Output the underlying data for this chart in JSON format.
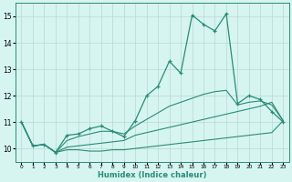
{
  "xlabel": "Humidex (Indice chaleur)",
  "x": [
    0,
    1,
    2,
    3,
    4,
    5,
    6,
    7,
    8,
    9,
    10,
    11,
    12,
    13,
    14,
    15,
    16,
    17,
    18,
    19,
    20,
    21,
    22,
    23
  ],
  "y_main": [
    11.0,
    10.1,
    10.15,
    9.85,
    10.5,
    10.55,
    10.75,
    10.85,
    10.65,
    10.45,
    11.05,
    12.0,
    12.35,
    13.3,
    12.85,
    15.05,
    14.7,
    14.45,
    15.1,
    11.7,
    12.0,
    11.85,
    11.4,
    11.0
  ],
  "y_line1": [
    11.0,
    10.1,
    10.15,
    9.85,
    9.95,
    9.95,
    9.9,
    9.9,
    9.95,
    9.95,
    10.0,
    10.05,
    10.1,
    10.15,
    10.2,
    10.25,
    10.3,
    10.35,
    10.4,
    10.45,
    10.5,
    10.55,
    10.6,
    11.05
  ],
  "y_line2": [
    11.0,
    10.1,
    10.15,
    9.85,
    10.05,
    10.1,
    10.15,
    10.2,
    10.25,
    10.3,
    10.5,
    10.6,
    10.7,
    10.8,
    10.9,
    11.0,
    11.1,
    11.2,
    11.3,
    11.4,
    11.5,
    11.6,
    11.75,
    11.05
  ],
  "y_line3": [
    11.0,
    10.1,
    10.15,
    9.85,
    10.3,
    10.45,
    10.55,
    10.65,
    10.65,
    10.55,
    10.85,
    11.1,
    11.35,
    11.6,
    11.75,
    11.9,
    12.05,
    12.15,
    12.2,
    11.65,
    11.75,
    11.8,
    11.65,
    11.05
  ],
  "line_color": "#2a8b78",
  "bg_color": "#d6f5f0",
  "grid_color": "#b8d8d2",
  "ylim": [
    9.5,
    15.5
  ],
  "yticks": [
    10,
    11,
    12,
    13,
    14,
    15
  ],
  "xlim": [
    -0.5,
    23.5
  ]
}
